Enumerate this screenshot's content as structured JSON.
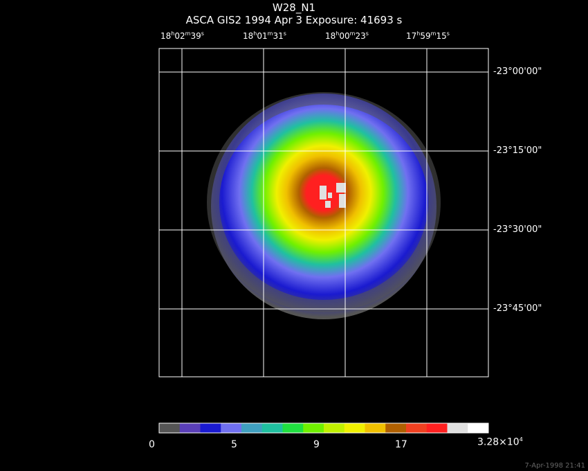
{
  "header": {
    "object": "W28_N1",
    "instrument_line": "ASCA GIS2   1994 Apr  3    Exposure: 41693 s"
  },
  "ra_labels": [
    {
      "h": "18",
      "m": "02",
      "s": "39"
    },
    {
      "h": "18",
      "m": "01",
      "s": "31"
    },
    {
      "h": "18",
      "m": "00",
      "s": "23"
    },
    {
      "h": "17",
      "m": "59",
      "s": "15"
    }
  ],
  "dec_labels": [
    "-23°00'00\"",
    "-23°15'00\"",
    "-23°30'00\"",
    "-23°45'00\""
  ],
  "colorbar": {
    "labels": [
      "0",
      "5",
      "9",
      "17",
      "3.28×10"
    ],
    "exponent": "4",
    "colors": [
      "#555555",
      "#5a3fb8",
      "#1a1ad0",
      "#7070f0",
      "#40a0c0",
      "#20c0a0",
      "#20e040",
      "#70f000",
      "#c0f000",
      "#f0f000",
      "#f0c000",
      "#b06000",
      "#f04020",
      "#ff2020",
      "#e0e0e0",
      "#ffffff"
    ]
  },
  "footer": "7-Apr-1998 21:41"
}
